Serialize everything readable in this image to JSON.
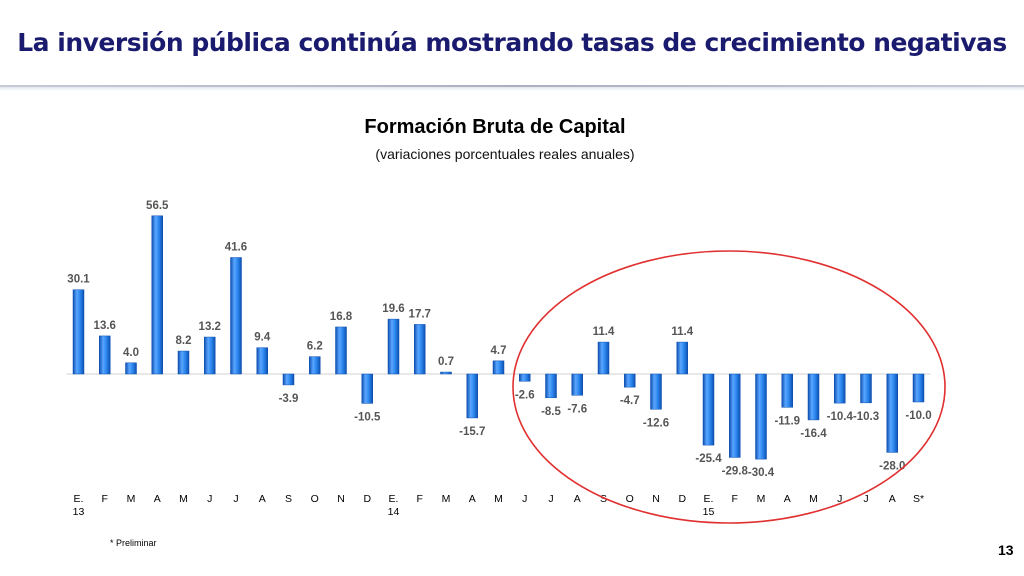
{
  "slide": {
    "title": "La inversión pública continúa mostrando tasas de crecimiento negativas",
    "footnote": "* Preliminar",
    "page_number": "13"
  },
  "colors": {
    "title": "#1a1a6e",
    "bar": "#1f78e0",
    "bar_dark": "#0d4fb0",
    "bar_light": "#5aa6ff",
    "highlight_ellipse": "#e03030",
    "value_labels": "#555555"
  },
  "chart_data": {
    "type": "bar",
    "title": "Formación Bruta de Capital",
    "subtitle": "(variaciones porcentuales reales anuales)",
    "categories": [
      "E.\n13",
      "F",
      "M",
      "A",
      "M",
      "J",
      "J",
      "A",
      "S",
      "O",
      "N",
      "D",
      "E.\n14",
      "F",
      "M",
      "A",
      "M",
      "J",
      "J",
      "A",
      "S",
      "O",
      "N",
      "D",
      "E.\n15",
      "F",
      "M",
      "A",
      "M",
      "J",
      "J",
      "A",
      "S*"
    ],
    "values": [
      30.1,
      13.6,
      4.0,
      56.5,
      8.2,
      13.2,
      41.6,
      9.4,
      -3.9,
      6.2,
      16.8,
      -10.5,
      19.6,
      17.7,
      0.7,
      -15.7,
      4.7,
      -2.6,
      -8.5,
      -7.6,
      11.4,
      -4.7,
      -12.6,
      11.4,
      -25.4,
      -29.8,
      -30.4,
      -11.9,
      -16.4,
      -10.4,
      -10.3,
      -28.0,
      -10.0
    ],
    "value_labels": [
      "30.1",
      "13.6",
      "4.0",
      "56.5",
      "8.2",
      "13.2",
      "41.6",
      "9.4",
      "-3.9",
      "6.2",
      "16.8",
      "-10.5",
      "19.6",
      "17.7",
      "0.7",
      "-15.7",
      "4.7",
      "-2.6",
      "-8.5",
      "-7.6",
      "11.4",
      "-4.7",
      "-12.6",
      "11.4",
      "-25.4",
      "-29.8",
      "-30.4",
      "-11.9",
      "-16.4",
      "-10.4",
      "-10.3",
      "-28.0",
      "-10.0"
    ],
    "ylim": [
      -35,
      60
    ],
    "grid": false,
    "legend": "none",
    "xlabel": "",
    "ylabel": "",
    "annotations": [
      "red ellipse highlighting Jun 2014 – Sep 2015"
    ]
  }
}
